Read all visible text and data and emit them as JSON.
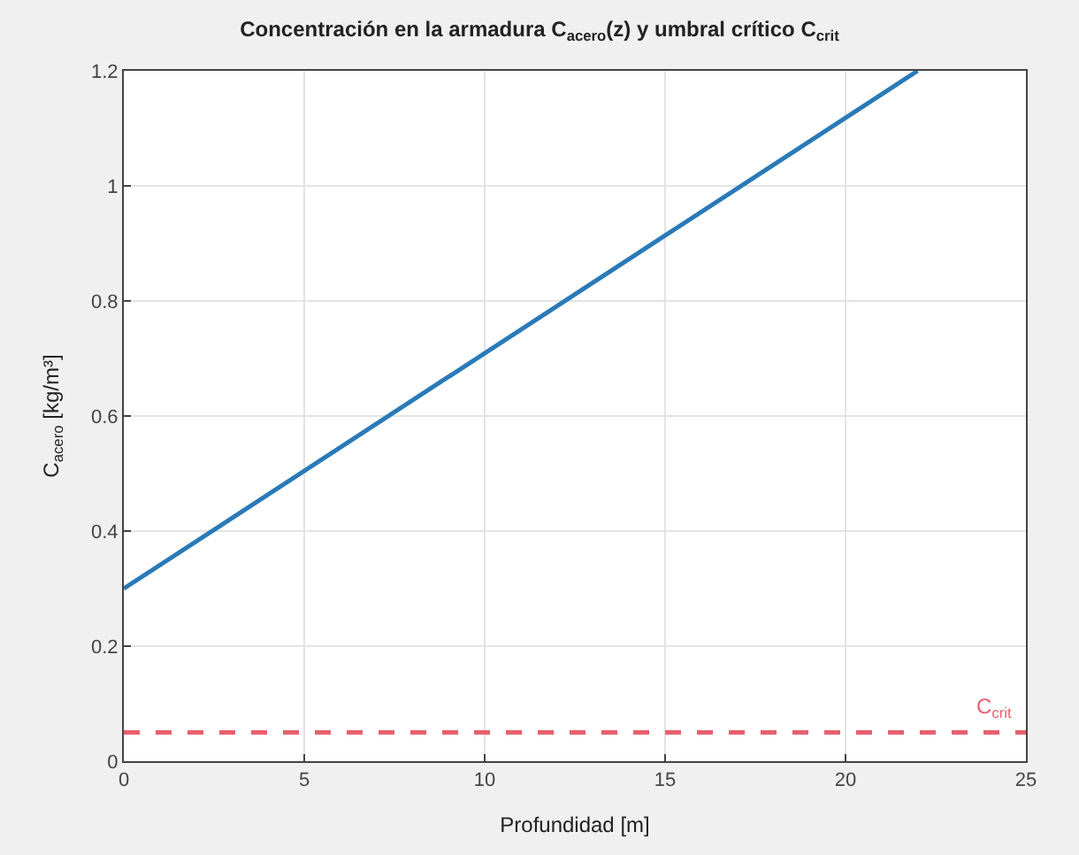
{
  "chart_data": {
    "type": "line",
    "title": "Concentración en la armadura C$_{acero}$(z) y umbral crítico C$_{crit}$",
    "xlabel": "Profundidad [m]",
    "ylabel": "C$_{acero}$ [kg/m³]",
    "x": [
      0,
      22
    ],
    "series": [
      {
        "color": "#2a7ab8",
        "values": [
          0.3,
          1.2
        ]
      }
    ],
    "xlim": [
      0,
      25
    ],
    "xticks": [
      0,
      5,
      10,
      15,
      20,
      25
    ],
    "ylim": [
      0,
      1.2
    ],
    "yticks": [
      0,
      0.2,
      0.4,
      0.6,
      0.8,
      1,
      1.2
    ],
    "ref_lines": [
      {
        "axis": "y",
        "value": 0.05,
        "label": "C$_{crit}$",
        "color": "#e8606e",
        "line_style": "dashed"
      }
    ],
    "grid": true,
    "line_style": "solid",
    "marker": "none"
  }
}
